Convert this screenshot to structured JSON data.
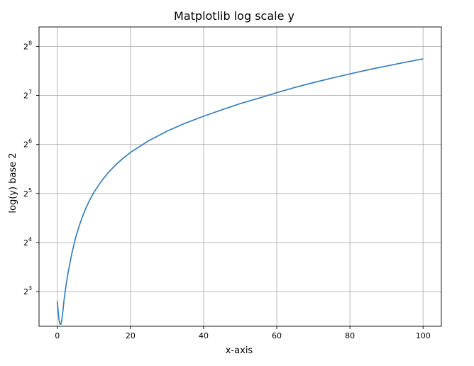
{
  "chart_data": {
    "type": "line",
    "title": "Matplotlib log scale y",
    "xlabel": "x-axis",
    "ylabel": "log(y) base 2",
    "yscale": "log2",
    "grid": true,
    "xlim": [
      -5,
      105
    ],
    "ylim": [
      4.9,
      337
    ],
    "x_ticks": [
      0,
      20,
      40,
      60,
      80,
      100
    ],
    "y_ticks": [
      {
        "base": "2",
        "exp": "3",
        "value": 8
      },
      {
        "base": "2",
        "exp": "4",
        "value": 16
      },
      {
        "base": "2",
        "exp": "5",
        "value": 32
      },
      {
        "base": "2",
        "exp": "6",
        "value": 64
      },
      {
        "base": "2",
        "exp": "7",
        "value": 128
      },
      {
        "base": "2",
        "exp": "8",
        "value": 256
      }
    ],
    "series": [
      {
        "color": "#3a7fb8",
        "x": [
          0,
          0.25,
          0.5,
          0.75,
          1,
          1.25,
          1.5,
          1.75,
          2,
          2.5,
          3,
          3.5,
          4,
          5,
          6,
          7,
          8,
          9,
          10,
          12,
          14,
          16,
          18,
          20,
          25,
          30,
          35,
          40,
          45,
          50,
          55,
          60,
          65,
          70,
          75,
          80,
          85,
          90,
          95,
          100
        ],
        "y": [
          7.0,
          6.0,
          5.3,
          5.05,
          5.05,
          5.4,
          6.0,
          6.8,
          7.6,
          9.1,
          10.6,
          12.1,
          13.8,
          17.1,
          20.3,
          23.5,
          26.6,
          29.6,
          32.5,
          38.0,
          43.2,
          48.1,
          52.7,
          57.2,
          67.5,
          77.3,
          86.5,
          95.4,
          104.5,
          114.0,
          123.0,
          133.0,
          143.5,
          153.4,
          163.4,
          173.5,
          184.0,
          194.0,
          204.3,
          214.6
        ]
      }
    ]
  }
}
